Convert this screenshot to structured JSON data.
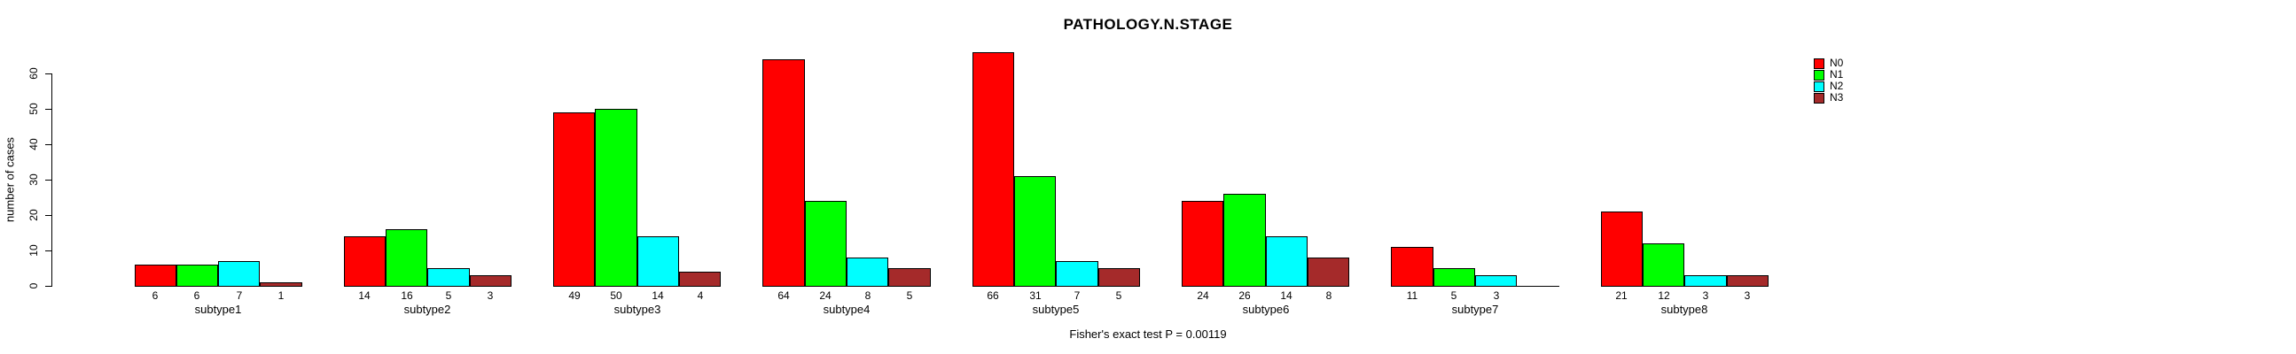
{
  "title": "PATHOLOGY.N.STAGE",
  "footer": "Fisher's exact test P = 0.00119",
  "y_axis": {
    "label": "number of cases",
    "tick_labels": [
      "0",
      "10",
      "20",
      "30",
      "40",
      "50",
      "60"
    ]
  },
  "legend": {
    "items": [
      {
        "label": "N0",
        "color": "#FF0000"
      },
      {
        "label": "N1",
        "color": "#00FF00"
      },
      {
        "label": "N2",
        "color": "#00FFFF"
      },
      {
        "label": "N3",
        "color": "#A52A2A"
      }
    ]
  },
  "chart_data": {
    "type": "bar",
    "title": "PATHOLOGY.N.STAGE",
    "xlabel": "",
    "ylabel": "number of cases",
    "ylim": [
      0,
      60
    ],
    "yticks": [
      0,
      10,
      20,
      30,
      40,
      50,
      60
    ],
    "grid": false,
    "legend_position": "right",
    "bar_value_labels_shown": true,
    "categories": [
      "subtype1",
      "subtype2",
      "subtype3",
      "subtype4",
      "subtype5",
      "subtype6",
      "subtype7",
      "subtype8"
    ],
    "series": [
      {
        "name": "N0",
        "color": "#FF0000",
        "values": [
          6,
          14,
          49,
          64,
          66,
          24,
          11,
          21
        ]
      },
      {
        "name": "N1",
        "color": "#00FF00",
        "values": [
          6,
          16,
          50,
          24,
          31,
          26,
          5,
          12
        ]
      },
      {
        "name": "N2",
        "color": "#00FFFF",
        "values": [
          7,
          5,
          14,
          8,
          7,
          14,
          3,
          3
        ]
      },
      {
        "name": "N3",
        "color": "#A52A2A",
        "values": [
          1,
          3,
          4,
          5,
          5,
          8,
          0,
          3
        ]
      }
    ],
    "annotation": "Fisher's exact test P = 0.00119"
  }
}
